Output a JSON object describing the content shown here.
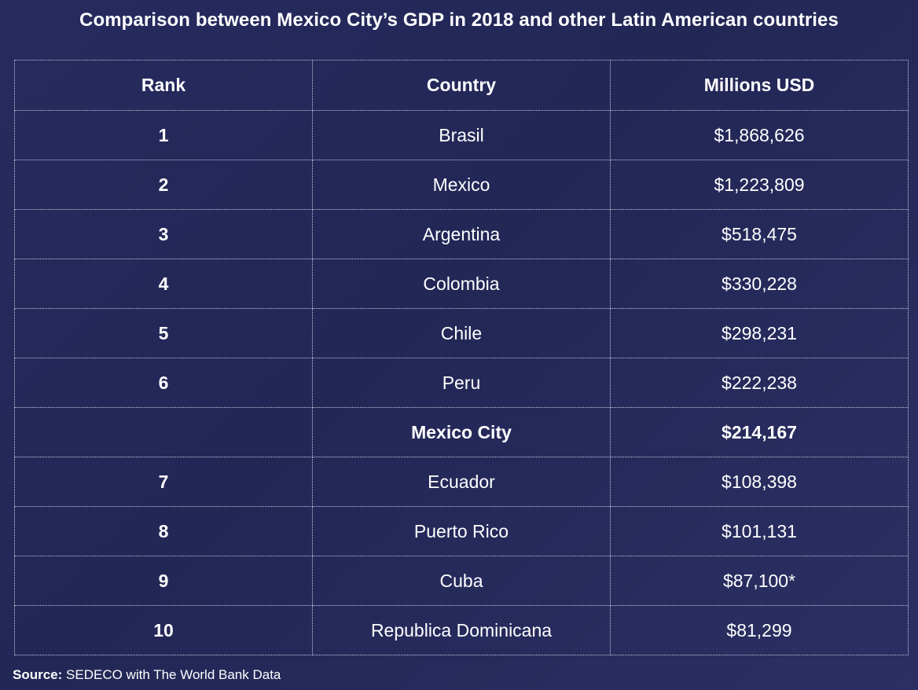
{
  "title": "Comparison between Mexico City’s GDP in 2018 and other Latin American countries",
  "chart_data": {
    "type": "table",
    "title": "Comparison between Mexico City’s GDP in 2018 and other Latin American countries",
    "columns": [
      "Rank",
      "Country",
      "Millions USD"
    ],
    "rows": [
      {
        "rank": "1",
        "country": "Brasil",
        "value": "$1,868,626",
        "highlight": false
      },
      {
        "rank": "2",
        "country": "Mexico",
        "value": "$1,223,809",
        "highlight": false
      },
      {
        "rank": "3",
        "country": "Argentina",
        "value": "$518,475",
        "highlight": false
      },
      {
        "rank": "4",
        "country": "Colombia",
        "value": "$330,228",
        "highlight": false
      },
      {
        "rank": "5",
        "country": "Chile",
        "value": "$298,231",
        "highlight": false
      },
      {
        "rank": "6",
        "country": "Peru",
        "value": "$222,238",
        "highlight": false
      },
      {
        "rank": "",
        "country": "Mexico City",
        "value": "$214,167",
        "highlight": true
      },
      {
        "rank": "7",
        "country": "Ecuador",
        "value": "$108,398",
        "highlight": false
      },
      {
        "rank": "8",
        "country": "Puerto Rico",
        "value": "$101,131",
        "highlight": false
      },
      {
        "rank": "9",
        "country": "Cuba",
        "value": "$87,100*",
        "highlight": false
      },
      {
        "rank": "10",
        "country": "Republica Dominicana",
        "value": "$81,299",
        "highlight": false
      }
    ]
  },
  "source": {
    "label": "Source:",
    "text": " SEDECO with The World Bank Data"
  },
  "colors": {
    "background": "#252959",
    "text": "#ffffff",
    "grid": "#c9cbe0"
  }
}
